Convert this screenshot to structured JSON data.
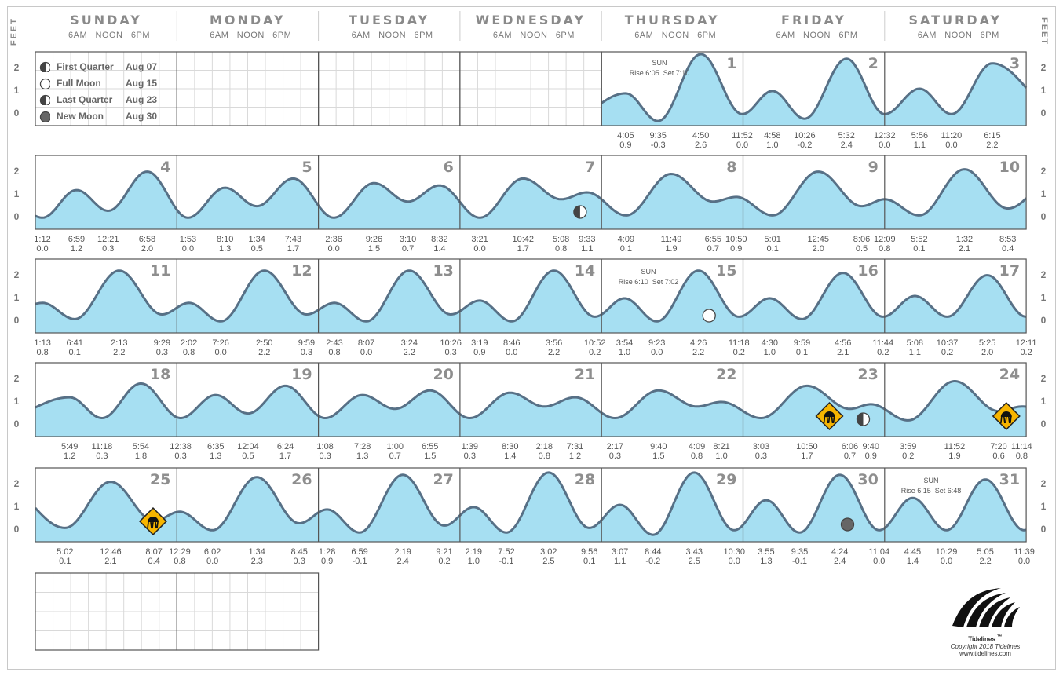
{
  "header": {
    "feet_label": "FEET",
    "days": [
      "SUNDAY",
      "MONDAY",
      "TUESDAY",
      "WEDNESDAY",
      "THURSDAY",
      "FRIDAY",
      "SATURDAY"
    ],
    "ticks": [
      "6AM",
      "NOON",
      "6PM"
    ]
  },
  "moon_legend": [
    {
      "phase": "First Quarter",
      "date": "Aug 07",
      "icon": "first-quarter-moon-icon"
    },
    {
      "phase": "Full Moon",
      "date": "Aug 15",
      "icon": "full-moon-icon"
    },
    {
      "phase": "Last Quarter",
      "date": "Aug 23",
      "icon": "last-quarter-moon-icon"
    },
    {
      "phase": "New Moon",
      "date": "Aug 30",
      "icon": "new-moon-icon"
    }
  ],
  "sun": [
    {
      "day": 1,
      "title": "SUN",
      "rise": "Rise 6:05",
      "set": "Set 7:10"
    },
    {
      "day": 15,
      "title": "SUN",
      "rise": "Rise 6:10",
      "set": "Set 7:02"
    },
    {
      "day": 31,
      "title": "SUN",
      "rise": "Rise 6:15",
      "set": "Set 6:48"
    }
  ],
  "logo": {
    "name": "Tidelines",
    "tm": "™",
    "copyright": "Copyright 2018 Tidelines",
    "url": "www.tidelines.com"
  },
  "colors": {
    "water": "#a6dff2",
    "line": "#577086",
    "grid": "#d9d9d9",
    "border": "#555555",
    "jelly": "#f7b500"
  },
  "chart_data": {
    "type": "area",
    "title": "",
    "ylabel": "FEET",
    "ylim": [
      -0.5,
      2.7
    ],
    "yticks": [
      0,
      1,
      2
    ],
    "weeks": [
      {
        "days": [
          null,
          null,
          null,
          null,
          1,
          2,
          3
        ],
        "events": [
          [
            "Thu",
            "4:05",
            0.9
          ],
          [
            "Thu",
            "9:35",
            -0.3
          ],
          [
            "Thu",
            "4:50",
            2.6
          ],
          [
            "Thu",
            "11:52",
            0.0
          ],
          [
            "Fri",
            "4:58",
            1.0
          ],
          [
            "Fri",
            "10:26",
            -0.2
          ],
          [
            "Fri",
            "5:32",
            2.4
          ],
          [
            "Fri",
            "12:32",
            0.0
          ],
          [
            "Sat",
            "5:56",
            1.1
          ],
          [
            "Sat",
            "11:20",
            0.0
          ],
          [
            "Sat",
            "6:15",
            2.2
          ]
        ]
      },
      {
        "days": [
          4,
          5,
          6,
          7,
          8,
          9,
          10
        ],
        "events": [
          [
            "Sun",
            "1:12",
            0.0
          ],
          [
            "Sun",
            "6:59",
            1.2
          ],
          [
            "Sun",
            "12:21",
            0.3
          ],
          [
            "Sun",
            "6:58",
            2.0
          ],
          [
            "Mon",
            "1:53",
            0.0
          ],
          [
            "Mon",
            "8:10",
            1.3
          ],
          [
            "Mon",
            "1:34",
            0.5
          ],
          [
            "Mon",
            "7:43",
            1.7
          ],
          [
            "Tue",
            "2:36",
            0.0
          ],
          [
            "Tue",
            "9:26",
            1.5
          ],
          [
            "Tue",
            "3:10",
            0.7
          ],
          [
            "Tue",
            "8:32",
            1.4
          ],
          [
            "Wed",
            "3:21",
            0.0
          ],
          [
            "Wed",
            "10:42",
            1.7
          ],
          [
            "Wed",
            "5:08",
            0.8
          ],
          [
            "Wed",
            "9:33",
            1.1
          ],
          [
            "Thu",
            "4:09",
            0.1
          ],
          [
            "Thu",
            "11:49",
            1.9
          ],
          [
            "Thu",
            "6:55",
            0.7
          ],
          [
            "Thu",
            "10:50",
            0.9
          ],
          [
            "Fri",
            "5:01",
            0.1
          ],
          [
            "Fri",
            "12:45",
            2.0
          ],
          [
            "Fri",
            "8:06",
            0.5
          ],
          [
            "Fri",
            "12:09",
            0.8
          ],
          [
            "Sat",
            "5:52",
            0.1
          ],
          [
            "Sat",
            "1:32",
            2.1
          ],
          [
            "Sat",
            "8:53",
            0.4
          ]
        ]
      },
      {
        "days": [
          11,
          12,
          13,
          14,
          15,
          16,
          17
        ],
        "events": [
          [
            "Sun",
            "1:13",
            0.8
          ],
          [
            "Sun",
            "6:41",
            0.1
          ],
          [
            "Sun",
            "2:13",
            2.2
          ],
          [
            "Sun",
            "9:29",
            0.3
          ],
          [
            "Mon",
            "2:02",
            0.8
          ],
          [
            "Mon",
            "7:26",
            0.0
          ],
          [
            "Mon",
            "2:50",
            2.2
          ],
          [
            "Mon",
            "9:59",
            0.3
          ],
          [
            "Tue",
            "2:43",
            0.8
          ],
          [
            "Tue",
            "8:07",
            0.0
          ],
          [
            "Tue",
            "3:24",
            2.2
          ],
          [
            "Tue",
            "10:26",
            0.3
          ],
          [
            "Wed",
            "3:19",
            0.9
          ],
          [
            "Wed",
            "8:46",
            0.0
          ],
          [
            "Wed",
            "3:56",
            2.2
          ],
          [
            "Wed",
            "10:52",
            0.2
          ],
          [
            "Thu",
            "3:54",
            1.0
          ],
          [
            "Thu",
            "9:23",
            0.0
          ],
          [
            "Thu",
            "4:26",
            2.2
          ],
          [
            "Thu",
            "11:18",
            0.2
          ],
          [
            "Fri",
            "4:30",
            1.0
          ],
          [
            "Fri",
            "9:59",
            0.1
          ],
          [
            "Fri",
            "4:56",
            2.1
          ],
          [
            "Fri",
            "11:44",
            0.2
          ],
          [
            "Sat",
            "5:08",
            1.1
          ],
          [
            "Sat",
            "10:37",
            0.2
          ],
          [
            "Sat",
            "5:25",
            2.0
          ],
          [
            "Sat",
            "12:11",
            0.2
          ]
        ]
      },
      {
        "days": [
          18,
          19,
          20,
          21,
          22,
          23,
          24
        ],
        "events": [
          [
            "Sun",
            "5:49",
            1.2
          ],
          [
            "Sun",
            "11:18",
            0.3
          ],
          [
            "Sun",
            "5:54",
            1.8
          ],
          [
            "Mon",
            "12:38",
            0.3
          ],
          [
            "Mon",
            "6:35",
            1.3
          ],
          [
            "Mon",
            "12:04",
            0.5
          ],
          [
            "Mon",
            "6:24",
            1.7
          ],
          [
            "Tue",
            "1:08",
            0.3
          ],
          [
            "Tue",
            "7:28",
            1.3
          ],
          [
            "Tue",
            "1:00",
            0.7
          ],
          [
            "Tue",
            "6:55",
            1.5
          ],
          [
            "Wed",
            "1:39",
            0.3
          ],
          [
            "Wed",
            "8:30",
            1.4
          ],
          [
            "Wed",
            "2:18",
            0.8
          ],
          [
            "Wed",
            "7:31",
            1.2
          ],
          [
            "Thu",
            "2:17",
            0.3
          ],
          [
            "Thu",
            "9:40",
            1.5
          ],
          [
            "Thu",
            "4:09",
            0.8
          ],
          [
            "Thu",
            "8:21",
            1.0
          ],
          [
            "Fri",
            "3:03",
            0.3
          ],
          [
            "Fri",
            "10:50",
            1.7
          ],
          [
            "Fri",
            "6:06",
            0.7
          ],
          [
            "Fri",
            "9:40",
            0.9
          ],
          [
            "Sat",
            "3:59",
            0.2
          ],
          [
            "Sat",
            "11:52",
            1.9
          ],
          [
            "Sat",
            "7:20",
            0.6
          ],
          [
            "Sat",
            "11:14",
            0.8
          ]
        ]
      },
      {
        "days": [
          25,
          26,
          27,
          28,
          29,
          30,
          31
        ],
        "events": [
          [
            "Sun",
            "5:02",
            0.1
          ],
          [
            "Sun",
            "12:46",
            2.1
          ],
          [
            "Sun",
            "8:07",
            0.4
          ],
          [
            "Mon",
            "12:29",
            0.8
          ],
          [
            "Mon",
            "6:02",
            0.0
          ],
          [
            "Mon",
            "1:34",
            2.3
          ],
          [
            "Mon",
            "8:45",
            0.3
          ],
          [
            "Tue",
            "1:28",
            0.9
          ],
          [
            "Tue",
            "6:59",
            -0.1
          ],
          [
            "Tue",
            "2:19",
            2.4
          ],
          [
            "Tue",
            "9:21",
            0.2
          ],
          [
            "Wed",
            "2:19",
            1.0
          ],
          [
            "Wed",
            "7:52",
            -0.1
          ],
          [
            "Wed",
            "3:02",
            2.5
          ],
          [
            "Wed",
            "9:56",
            0.1
          ],
          [
            "Thu",
            "3:07",
            1.1
          ],
          [
            "Thu",
            "8:44",
            -0.2
          ],
          [
            "Thu",
            "3:43",
            2.5
          ],
          [
            "Thu",
            "10:30",
            0.0
          ],
          [
            "Fri",
            "3:55",
            1.3
          ],
          [
            "Fri",
            "9:35",
            -0.1
          ],
          [
            "Fri",
            "4:24",
            2.4
          ],
          [
            "Fri",
            "11:04",
            0.0
          ],
          [
            "Sat",
            "4:45",
            1.4
          ],
          [
            "Sat",
            "10:29",
            0.0
          ],
          [
            "Sat",
            "5:05",
            2.2
          ],
          [
            "Sat",
            "11:39",
            0.0
          ]
        ]
      }
    ],
    "moon_markers": [
      {
        "day": 7,
        "phase": "first-quarter"
      },
      {
        "day": 15,
        "phase": "full"
      },
      {
        "day": 23,
        "phase": "last-quarter"
      },
      {
        "day": 30,
        "phase": "new"
      }
    ],
    "jellyfish_markers": [
      23,
      24,
      25
    ]
  }
}
